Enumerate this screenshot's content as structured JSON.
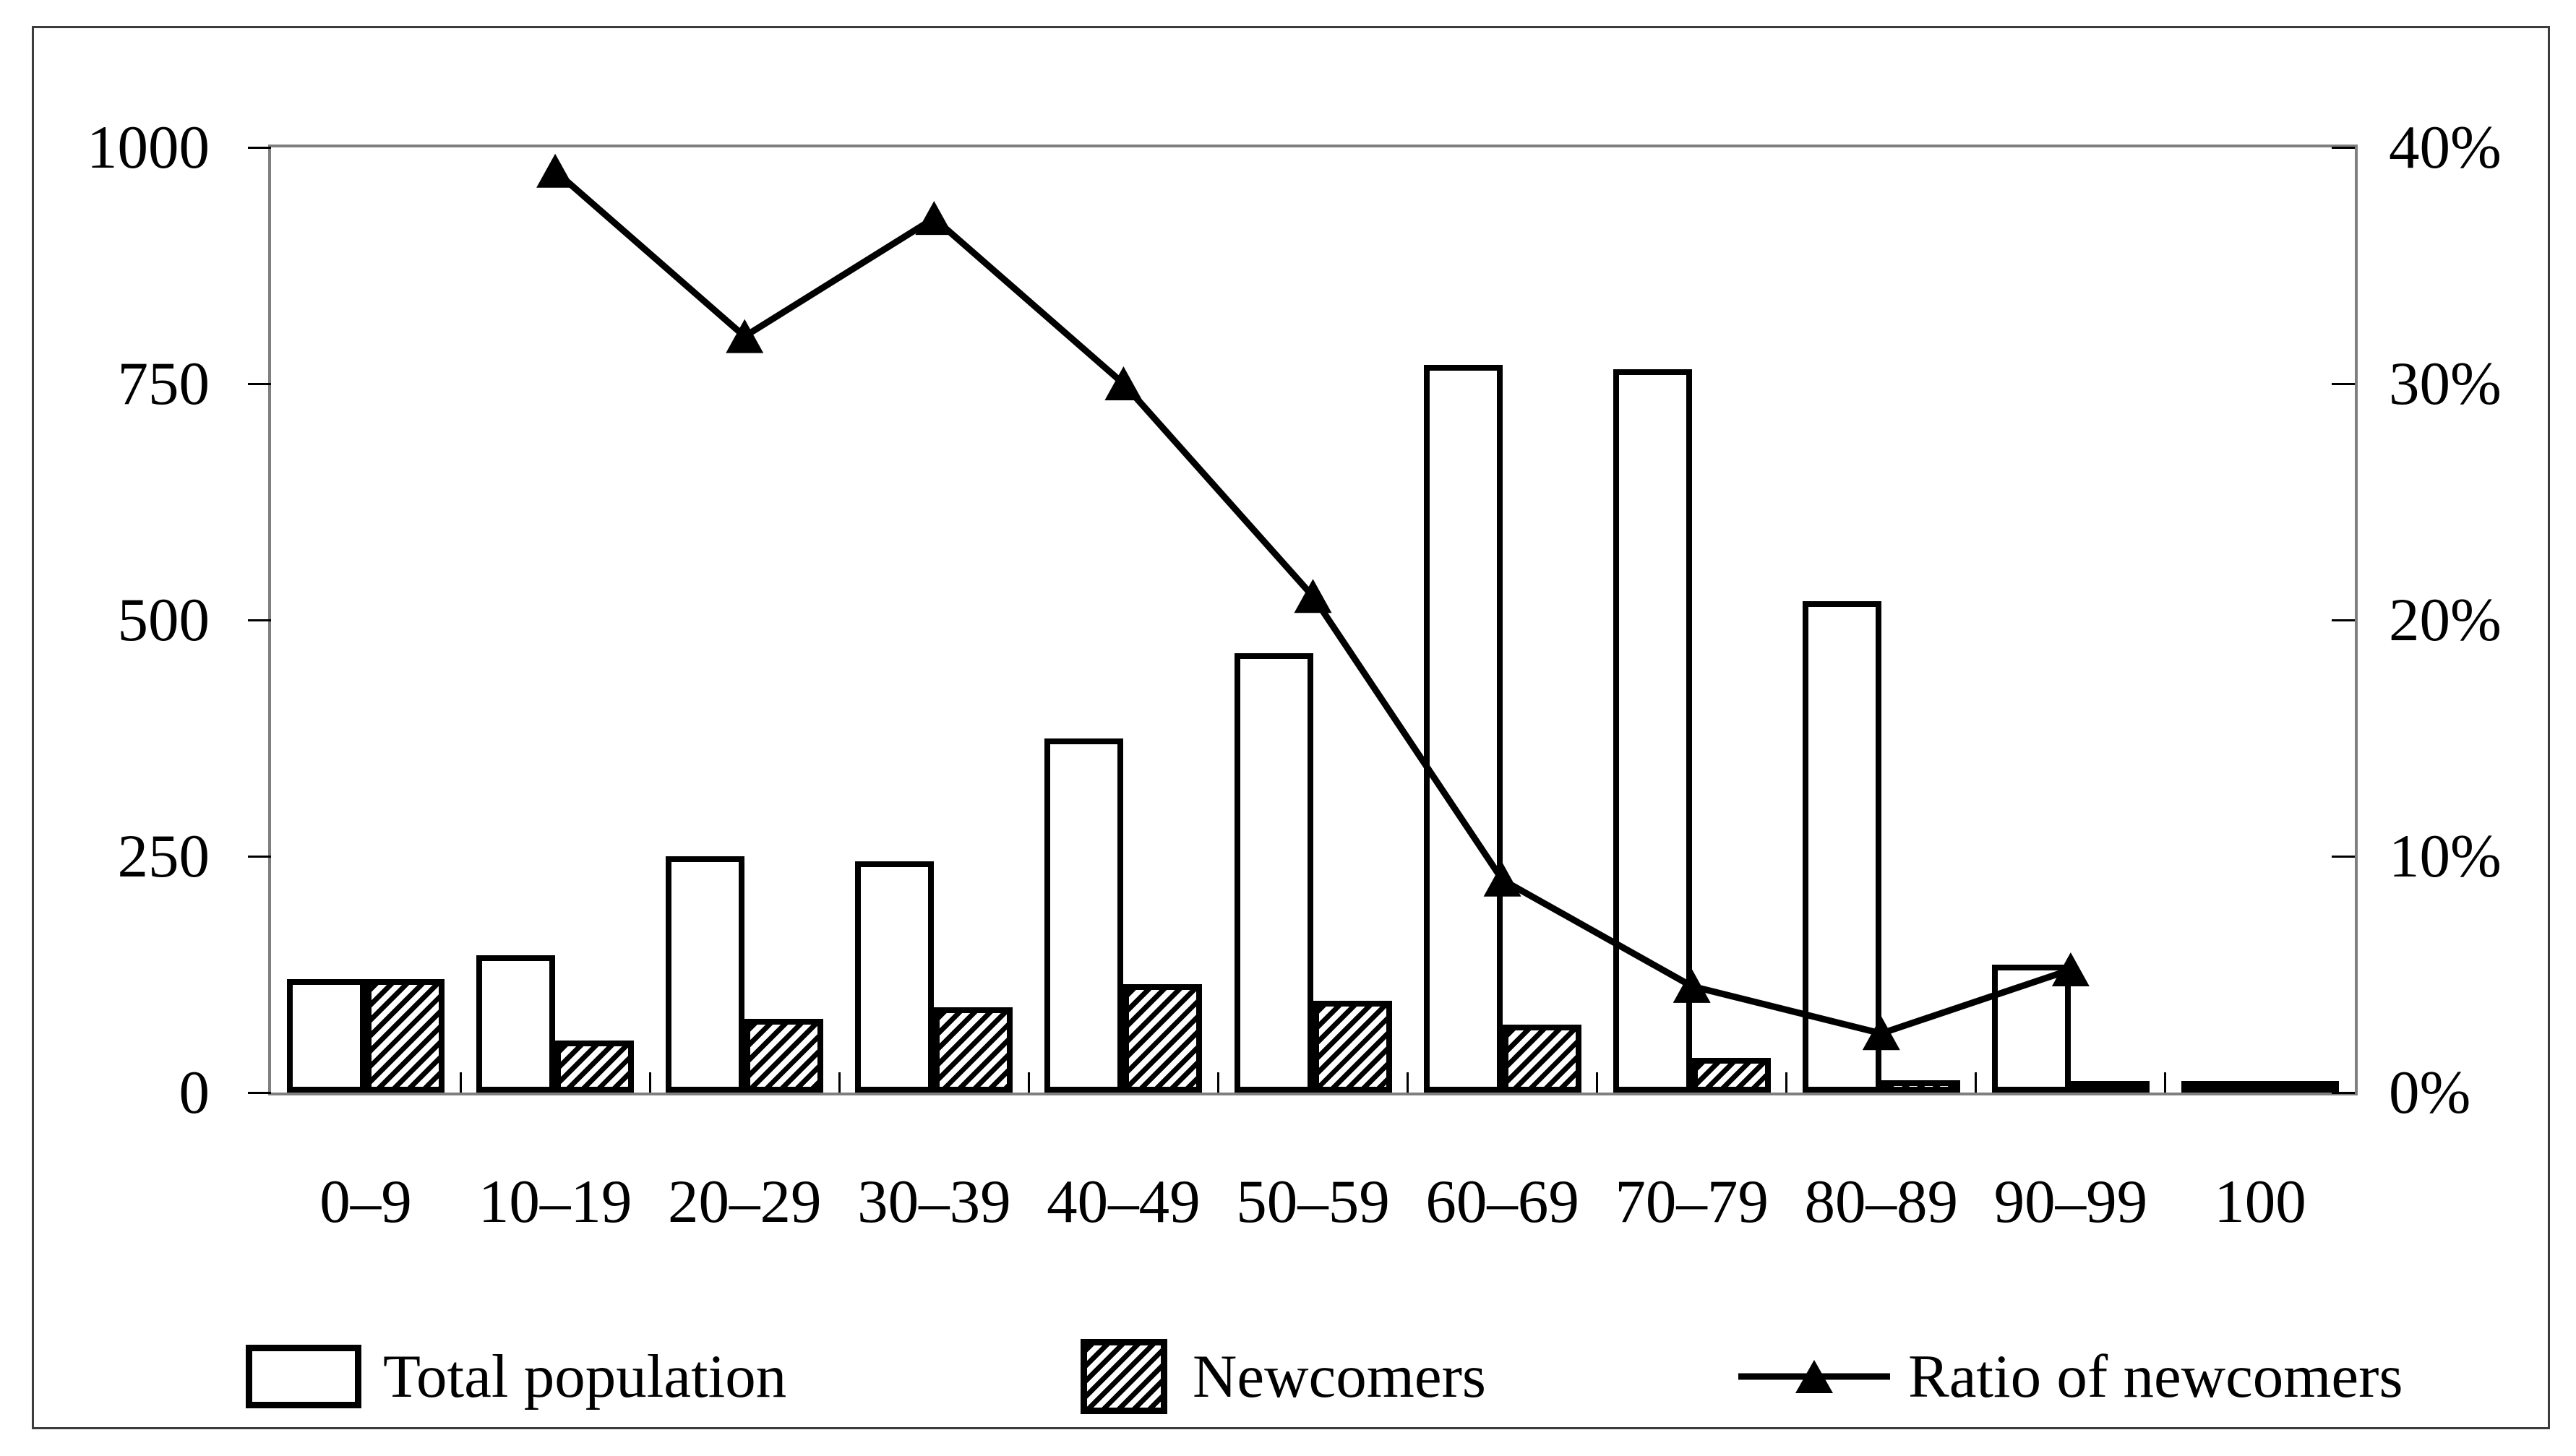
{
  "figure": {
    "background": "#ffffff",
    "border_color": "#3c3c3c",
    "plot_border_color": "#7f7f7f",
    "series_color": "#000000"
  },
  "chart_data": {
    "type": "bar",
    "subtype": "bar-line-combo",
    "categories": [
      "0–9",
      "10–19",
      "20–29",
      "30–39",
      "40–49",
      "50–59",
      "60–69",
      "70–79",
      "80–89",
      "90–99",
      "100"
    ],
    "series": [
      {
        "name": "Total population",
        "type": "bar",
        "style": "white-outline",
        "axis": "left",
        "values": [
          120,
          145,
          250,
          245,
          375,
          465,
          770,
          765,
          520,
          135,
          5
        ]
      },
      {
        "name": "Newcomers",
        "type": "bar",
        "style": "hatched",
        "axis": "left",
        "values": [
          120,
          55,
          78,
          90,
          115,
          97,
          72,
          37,
          13,
          9,
          2
        ]
      },
      {
        "name": "Ratio of newcomers",
        "type": "line",
        "style": "black-line-triangle-markers",
        "axis": "right",
        "values_percent": [
          null,
          39,
          32,
          37,
          30,
          21,
          9,
          4.5,
          2.5,
          5.2,
          null
        ]
      }
    ],
    "left_axis": {
      "min": 0,
      "max": 1000,
      "tick_values": [
        0,
        250,
        500,
        750,
        1000
      ],
      "tick_labels": [
        "0",
        "250",
        "500",
        "750",
        "1000"
      ]
    },
    "right_axis": {
      "min": 0,
      "max": 40,
      "tick_values": [
        0,
        10,
        20,
        30,
        40
      ],
      "tick_labels": [
        "0%",
        "10%",
        "20%",
        "30%",
        "40%"
      ]
    },
    "grid": false,
    "legend_position": "bottom",
    "legend": {
      "items": [
        {
          "label": "Total population",
          "swatch": "white-box"
        },
        {
          "label": "Newcomers",
          "swatch": "hatched-box"
        },
        {
          "label": "Ratio of newcomers",
          "swatch": "line-with-triangle"
        }
      ]
    }
  }
}
